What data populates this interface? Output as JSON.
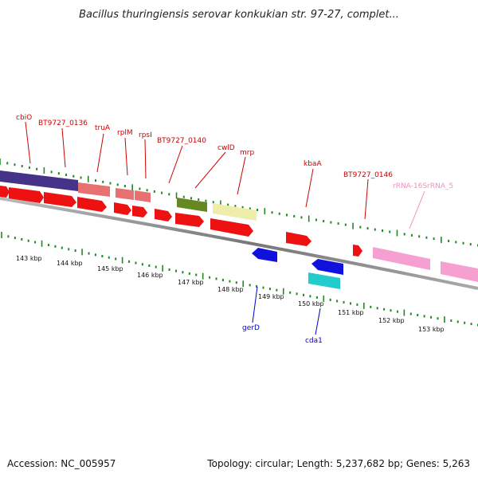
{
  "title": "Bacillus thuringiensis serovar konkukian str. 97-27, complet...",
  "footer": {
    "accession": "Accession: NC_005957",
    "summary": "Topology: circular; Length: 5,237,682 bp; Genes: 5,263"
  },
  "kbp_ticks": [
    "143 kbp",
    "144 kbp",
    "145 kbp",
    "146 kbp",
    "147 kbp",
    "148 kbp",
    "149 kbp",
    "150 kbp",
    "151 kbp",
    "152 kbp",
    "153 kbp"
  ],
  "gene_labels_top": [
    {
      "text": "cbiO",
      "color": "#cc0000"
    },
    {
      "text": "BT9727_0136",
      "color": "#cc0000"
    },
    {
      "text": "truA",
      "color": "#cc0000"
    },
    {
      "text": "rplM",
      "color": "#cc0000"
    },
    {
      "text": "rpsI",
      "color": "#cc0000"
    },
    {
      "text": "BT9727_0140",
      "color": "#cc0000"
    },
    {
      "text": "cwlD",
      "color": "#cc0000"
    },
    {
      "text": "mrp",
      "color": "#cc0000"
    },
    {
      "text": "kbaA",
      "color": "#cc0000"
    },
    {
      "text": "BT9727_0146",
      "color": "#cc0000"
    },
    {
      "text": "rRNA-16SrRNA_5",
      "color": "#f090c0"
    }
  ],
  "gene_labels_bottom": [
    {
      "text": "gerD",
      "color": "#0000cc"
    },
    {
      "text": "cda1",
      "color": "#0000cc"
    }
  ],
  "colors": {
    "cds": "#ee1111",
    "trna_rrna": "#f08080",
    "misc": "#443388",
    "green": "#668822",
    "yellow": "#eeeeaa",
    "pink": "#f5a0d0",
    "blue": "#1111dd",
    "cyan": "#22cccc",
    "backbone": "#888888",
    "tick": "#228822"
  }
}
